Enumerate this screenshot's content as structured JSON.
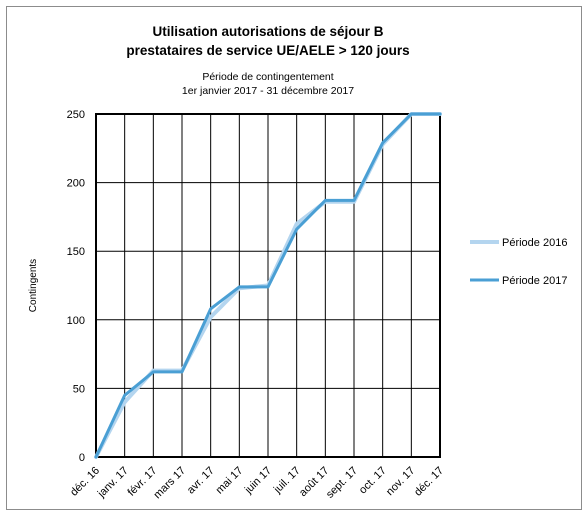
{
  "chart_data": {
    "type": "line",
    "title_line1": "Utilisation autorisations de séjour B",
    "title_line2": "prestataires de service UE/AELE > 120 jours",
    "subtitle_line1": "Période de contingentement",
    "subtitle_line2": "1er janvier 2017 - 31 décembre 2017",
    "ylabel": "Contingents",
    "xlabel": "",
    "ylim": [
      0,
      250
    ],
    "yticks": [
      0,
      50,
      100,
      150,
      200,
      250
    ],
    "categories": [
      "déc. 16",
      "janv. 17",
      "févr. 17",
      "mars 17",
      "avr. 17",
      "mai 17",
      "juin 17",
      "juil. 17",
      "août 17",
      "sept. 17",
      "oct. 17",
      "nov. 17",
      "déc. 17"
    ],
    "series": [
      {
        "name": "Période 2016",
        "color": "#b4d5ef",
        "values": [
          0,
          40,
          63,
          63,
          102,
          123,
          125,
          170,
          186,
          186,
          228,
          250,
          250
        ]
      },
      {
        "name": "Période 2017",
        "color": "#4a9fd4",
        "values": [
          0,
          45,
          62,
          62,
          108,
          124,
          124,
          166,
          187,
          187,
          229,
          253,
          250
        ]
      }
    ],
    "grid": true,
    "legend_position": "right"
  }
}
